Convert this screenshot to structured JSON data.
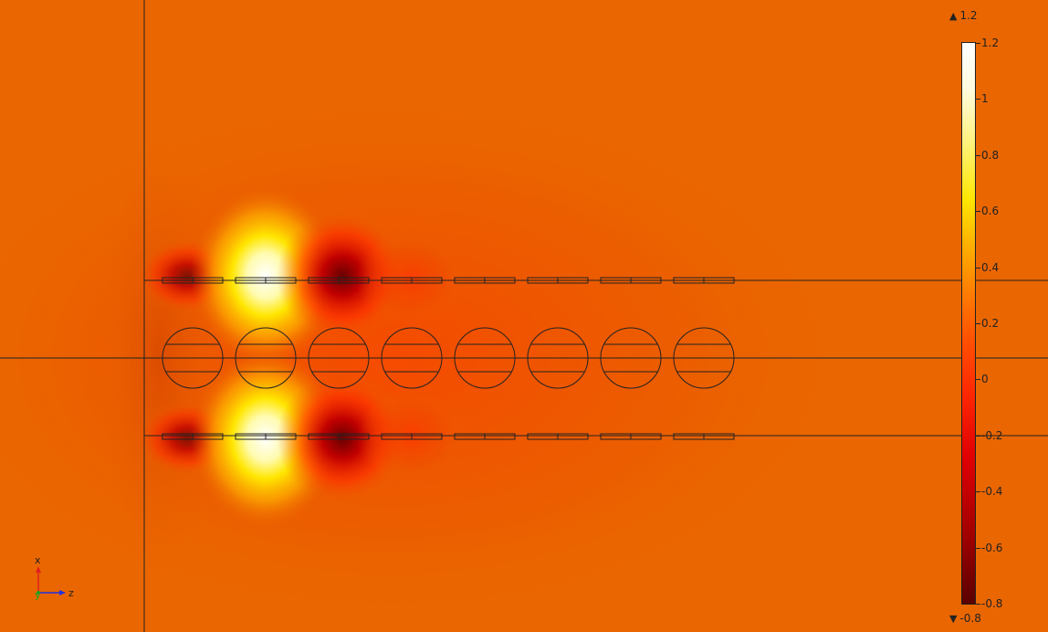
{
  "colorbar": {
    "max_label": "1.2",
    "min_label": "-0.8",
    "ticks": [
      "1.2",
      "1",
      "0.8",
      "0.6",
      "0.4",
      "0.2",
      "0",
      "-0.2",
      "-0.4",
      "-0.6",
      "-0.8"
    ]
  },
  "triad": {
    "x": "x",
    "y": "y",
    "z": "z"
  },
  "colors": {
    "background": "#ea6600",
    "axis_x": "#e02020",
    "axis_y": "#20a020",
    "axis_z": "#2030e0"
  },
  "icons": {
    "max_marker": "triangle-up-icon",
    "min_marker": "triangle-down-icon"
  }
}
